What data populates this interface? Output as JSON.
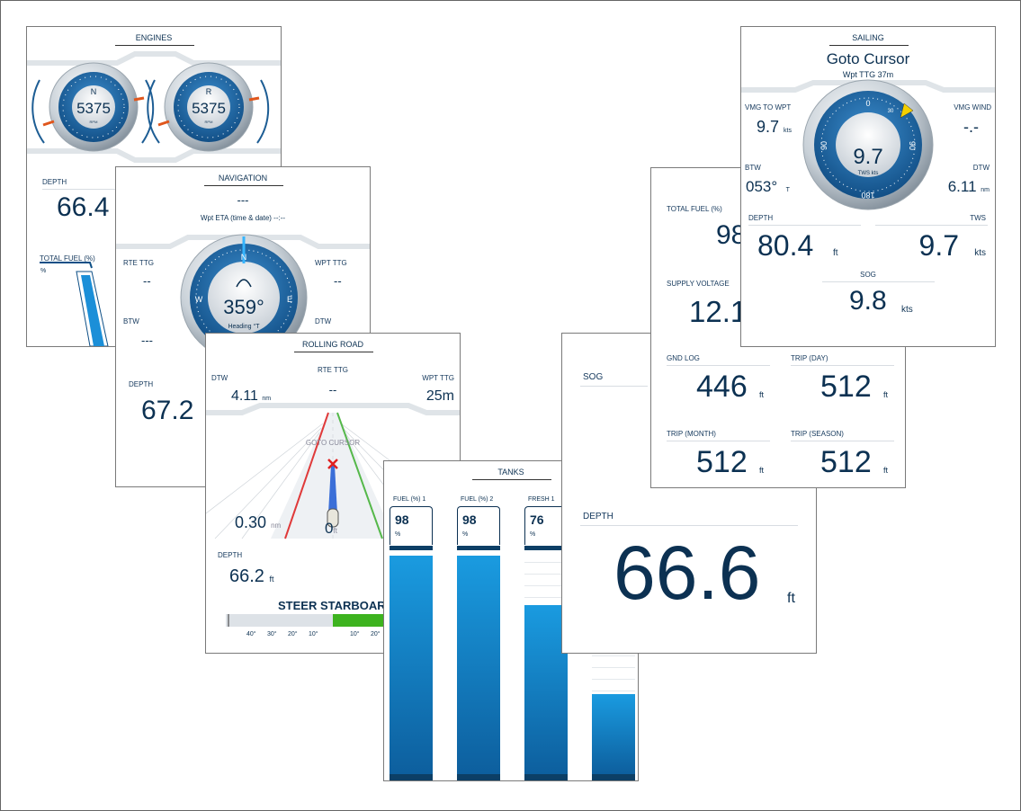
{
  "engines": {
    "title": "ENGINES",
    "gauges": [
      {
        "gear": "N",
        "rpm": "5375",
        "unit": "RPM"
      },
      {
        "gear": "R",
        "rpm": "5375",
        "unit": "RPM"
      }
    ],
    "depth_label": "DEPTH",
    "depth": "66.4",
    "fuel_label": "TOTAL FUEL (%)",
    "fuel_unit": "%"
  },
  "navigation": {
    "title": "NAVIGATION",
    "waypoint": "---",
    "eta": "Wpt ETA (time & date) --:--",
    "rte_ttg_label": "RTE TTG",
    "rte_ttg": "--",
    "wpt_ttg_label": "WPT TTG",
    "wpt_ttg": "--",
    "btw_label": "BTW",
    "btw": "---",
    "dtw_label": "DTW",
    "heading": "359°",
    "heading_label": "Heading °T",
    "compass": [
      "N",
      "E",
      "W"
    ],
    "depth_label": "DEPTH",
    "depth": "67.2"
  },
  "rolling_road": {
    "title": "ROLLING ROAD",
    "dtw_label": "DTW",
    "dtw": "4.11",
    "dtw_unit": "nm",
    "rte_ttg_label": "RTE TTG",
    "rte_ttg": "--",
    "wpt_ttg_label": "WPT TTG",
    "wpt_ttg": "25m",
    "target": "GOTO CURSOR",
    "xte": "0.30",
    "xte_unit": "nm",
    "depth_marker": "0",
    "depth_marker_unit": "ft",
    "depth_label": "DEPTH",
    "depth": "66.2",
    "depth_unit": "ft",
    "steer": "STEER STARBOARD",
    "scale": [
      "40°",
      "30°",
      "20°",
      "10°",
      "10°",
      "20°"
    ]
  },
  "tanks": {
    "title": "TANKS",
    "items": [
      {
        "name": "FUEL (%) 1",
        "value": 98,
        "unit": "%"
      },
      {
        "name": "FUEL (%) 2",
        "value": 98,
        "unit": "%"
      },
      {
        "name": "FRESH 1",
        "value": 76,
        "unit": "%"
      },
      {
        "value": 36
      }
    ]
  },
  "sog_depth": {
    "sog_label": "SOG",
    "depth_label": "DEPTH",
    "depth": "66.6",
    "depth_unit": "ft"
  },
  "logs": {
    "fuel_label": "TOTAL FUEL (%)",
    "fuel": "98",
    "voltage_label": "SUPPLY VOLTAGE",
    "voltage": "12.1",
    "cells": [
      {
        "label": "GND LOG",
        "value": "446",
        "unit": "ft"
      },
      {
        "label": "TRIP (DAY)",
        "value": "512",
        "unit": "ft"
      },
      {
        "label": "TRIP (MONTH)",
        "value": "512",
        "unit": "ft"
      },
      {
        "label": "TRIP (SEASON)",
        "value": "512",
        "unit": "ft"
      }
    ]
  },
  "sailing": {
    "title": "SAILING",
    "heading": "Goto Cursor",
    "sub": "Wpt TTG 37m",
    "vmg_wpt_label": "VMG TO WPT",
    "vmg_wpt": "9.7",
    "vmg_wpt_unit": "kts",
    "vmg_wind_label": "VMG WIND",
    "vmg_wind": "-.-",
    "btw_label": "BTW",
    "btw": "053°",
    "btw_unit": "T",
    "dtw_label": "DTW",
    "dtw": "6.11",
    "dtw_unit": "nm",
    "tws_center": "9.7",
    "tws_center_label": "TWS kts",
    "dial": [
      "0",
      "90",
      "90",
      "180",
      "30"
    ],
    "depth_label": "DEPTH",
    "depth": "80.4",
    "depth_unit": "ft",
    "tws_label": "TWS",
    "tws": "9.7",
    "tws_unit": "kts",
    "sog_label": "SOG",
    "sog": "9.8",
    "sog_unit": "kts"
  }
}
